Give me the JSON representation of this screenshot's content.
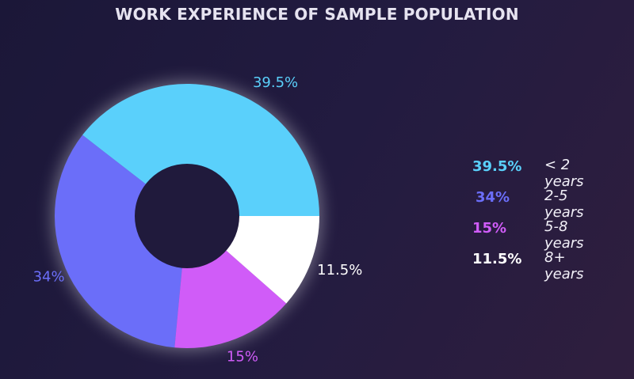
{
  "chart_data": {
    "type": "pie",
    "variant": "donut",
    "title": "WORK EXPERIENCE OF SAMPLE POPULATION",
    "slices": [
      {
        "label": "< 2 years",
        "value": 39.5,
        "display": "39.5%",
        "color": "#5ad0fb"
      },
      {
        "label": "2-5 years",
        "value": 34,
        "display": "34%",
        "color": "#6b6ef9"
      },
      {
        "label": "5-8 years",
        "value": 15,
        "display": "15%",
        "color": "#d05cf8"
      },
      {
        "label": "8+ years",
        "value": 11.5,
        "display": "11.5%",
        "color": "#ffffff"
      }
    ],
    "start": "3 o'clock",
    "direction": "counterclockwise",
    "legend_placement": "right"
  }
}
